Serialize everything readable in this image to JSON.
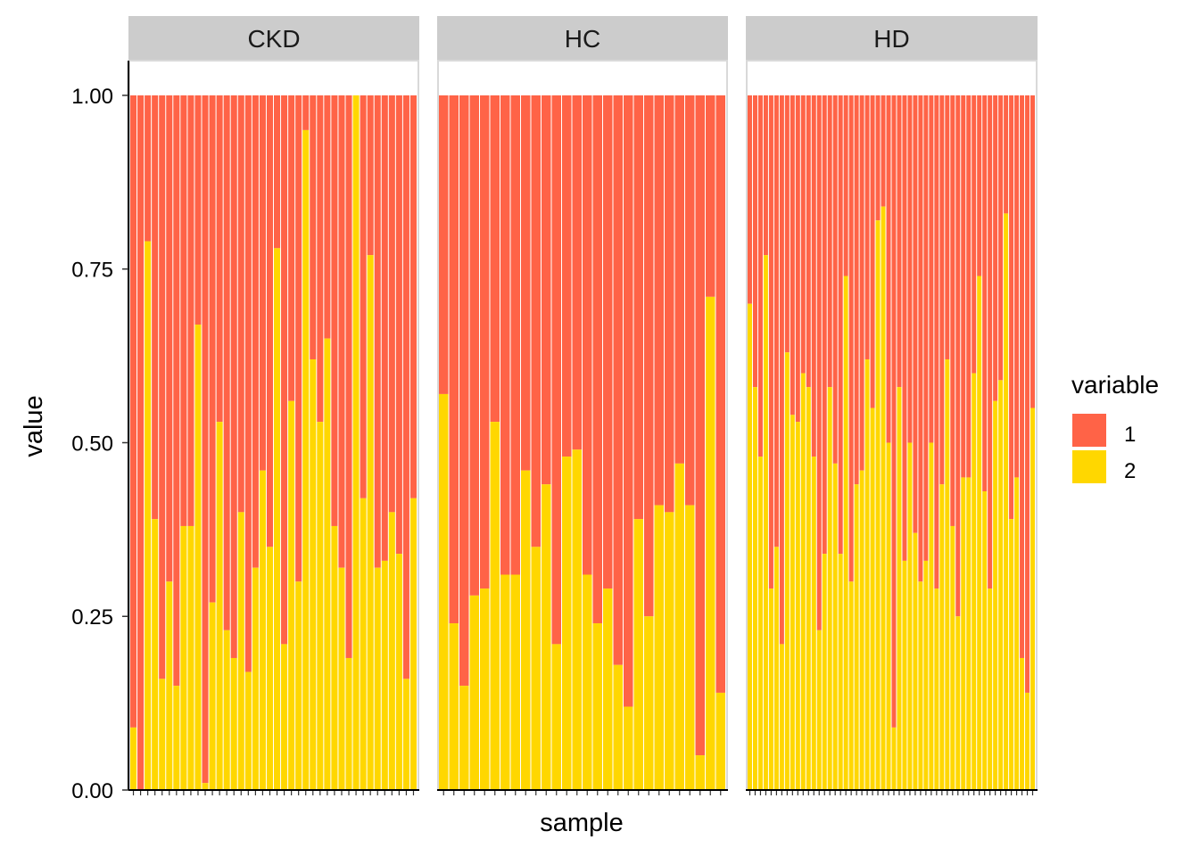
{
  "chart_data": {
    "type": "bar",
    "stacked": true,
    "xlabel": "sample",
    "ylabel": "value",
    "ylim": [
      0,
      1.05
    ],
    "yticks": [
      "0.00",
      "0.25",
      "0.50",
      "0.75",
      "1.00"
    ],
    "ytick_values": [
      0,
      0.25,
      0.5,
      0.75,
      1.0
    ],
    "grid": false,
    "legend": {
      "title": "variable",
      "position": "right",
      "entries": [
        "1",
        "2"
      ]
    },
    "colors": {
      "1": "#FF6347",
      "2": "#FFD700",
      "strip": "#CCCCCC",
      "panel_border": "#D9D9D9"
    },
    "series_note": "Each sample bar is a stack of variable 2 (bottom, value shown) and variable 1 (top, 1 - value); total = 1.00",
    "facets": [
      {
        "name": "CKD",
        "series_2_values": [
          0.09,
          0.0,
          0.79,
          0.39,
          0.16,
          0.3,
          0.15,
          0.38,
          0.38,
          0.67,
          0.01,
          0.27,
          0.53,
          0.23,
          0.19,
          0.4,
          0.17,
          0.32,
          0.46,
          0.35,
          0.78,
          0.21,
          0.56,
          0.3,
          0.95,
          0.62,
          0.53,
          0.65,
          0.38,
          0.32,
          0.19,
          1.0,
          0.42,
          0.77,
          0.32,
          0.33,
          0.4,
          0.34,
          0.16,
          0.42
        ]
      },
      {
        "name": "HC",
        "series_2_values": [
          0.57,
          0.24,
          0.15,
          0.28,
          0.29,
          0.53,
          0.31,
          0.31,
          0.46,
          0.35,
          0.44,
          0.21,
          0.48,
          0.49,
          0.31,
          0.24,
          0.29,
          0.18,
          0.12,
          0.39,
          0.25,
          0.41,
          0.4,
          0.47,
          0.41,
          0.05,
          0.71,
          0.14
        ]
      },
      {
        "name": "HD",
        "series_2_values": [
          0.7,
          0.58,
          0.48,
          0.77,
          0.29,
          0.35,
          0.21,
          0.63,
          0.54,
          0.53,
          0.6,
          0.58,
          0.48,
          0.23,
          0.34,
          0.58,
          0.47,
          0.34,
          0.74,
          0.3,
          0.44,
          0.46,
          0.62,
          0.55,
          0.82,
          0.84,
          0.5,
          0.09,
          0.58,
          0.33,
          0.5,
          0.37,
          0.3,
          0.33,
          0.5,
          0.29,
          0.44,
          0.62,
          0.38,
          0.25,
          0.45,
          0.45,
          0.6,
          0.74,
          0.43,
          0.29,
          0.56,
          0.59,
          0.83,
          0.39,
          0.45,
          0.19,
          0.14,
          0.55
        ]
      }
    ]
  }
}
